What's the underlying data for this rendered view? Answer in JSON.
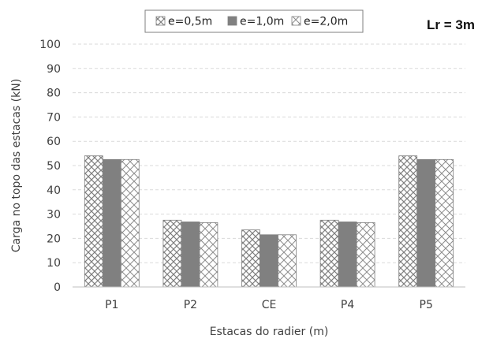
{
  "chart_data": {
    "type": "bar",
    "title": "",
    "annotation": "Lr = 3m",
    "xlabel": "Estacas do radier (m)",
    "ylabel": "Carga no topo das estacas (kN)",
    "ylim": [
      0,
      100
    ],
    "yticks": [
      "0",
      "10",
      "20",
      "30",
      "40",
      "50",
      "60",
      "70",
      "80",
      "90",
      "100"
    ],
    "grid": true,
    "legend_position": "top-center",
    "categories": [
      "P1",
      "P2",
      "CE",
      "P4",
      "P5"
    ],
    "series": [
      {
        "name": "e=0,5m",
        "values": [
          54,
          27.5,
          23.5,
          27.5,
          54
        ],
        "pattern": "checker"
      },
      {
        "name": "e=1,0m",
        "values": [
          52.5,
          26.8,
          21.5,
          26.8,
          52.5
        ],
        "pattern": "solid"
      },
      {
        "name": "e=2,0m",
        "values": [
          52.5,
          26.5,
          21.5,
          26.5,
          52.5
        ],
        "pattern": "diagonal-cross"
      }
    ],
    "colors": {
      "solid": "#808080",
      "pattern_line": "#7f7f7f",
      "grid": "#d9d9d9",
      "axis": "#bfbfbf"
    }
  }
}
